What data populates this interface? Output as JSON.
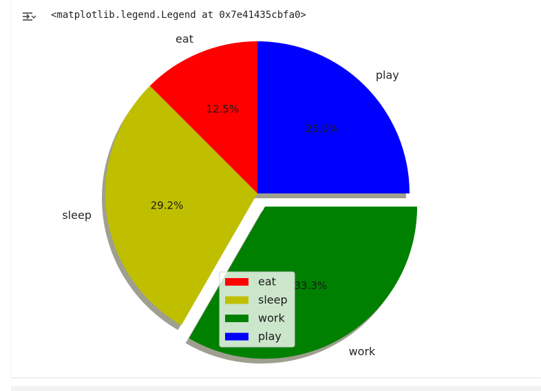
{
  "output": {
    "repr_text": "<matplotlib.legend.Legend at 0x7e41435cbfa0>"
  },
  "chart_data": {
    "type": "pie",
    "categories": [
      "eat",
      "sleep",
      "work",
      "play"
    ],
    "values": [
      3,
      7,
      8,
      6
    ],
    "autopct": [
      "12.5%",
      "29.2%",
      "33.3%",
      "25.0%"
    ],
    "colors": [
      "#ff0000",
      "#bfbf00",
      "#008000",
      "#0000ff"
    ],
    "explode": [
      0,
      0,
      0.1,
      0
    ],
    "shadow": true,
    "start_angle_deg": 90,
    "legend": {
      "entries": [
        "eat",
        "sleep",
        "work",
        "play"
      ],
      "placement": "lower-center"
    }
  }
}
